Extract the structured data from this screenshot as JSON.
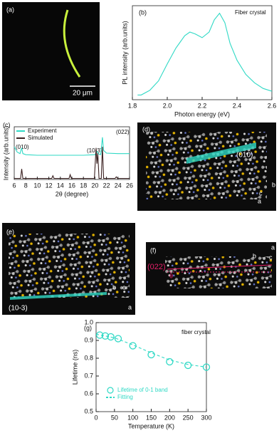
{
  "chart_data": [
    {
      "type": "line",
      "panel_label": "(b)",
      "x_label": "Photon energy (eV)",
      "y_label": "PL intensity (arb.units)",
      "annotations": [
        "Fiber crystal"
      ],
      "xlim": [
        1.8,
        2.6
      ],
      "xticks": [
        1.8,
        {
          "value": 2,
          "label": "2.0"
        },
        2.2,
        2.4,
        2.6
      ],
      "ylim": [
        0,
        1
      ],
      "series": [
        {
          "color": "#2fd9c5",
          "style": "line",
          "x": [
            1.83,
            1.85,
            1.9,
            1.95,
            2.0,
            2.05,
            2.1,
            2.13,
            2.16,
            2.2,
            2.24,
            2.27,
            2.3,
            2.33,
            2.36,
            2.4,
            2.45,
            2.5,
            2.55,
            2.6
          ],
          "values": [
            0.05,
            0.05,
            0.1,
            0.2,
            0.38,
            0.55,
            0.68,
            0.72,
            0.7,
            0.66,
            0.72,
            0.85,
            0.92,
            0.82,
            0.6,
            0.42,
            0.27,
            0.18,
            0.12,
            0.09
          ]
        }
      ]
    },
    {
      "type": "line",
      "panel_label": "(c)",
      "x_label": "2θ (degree)",
      "y_label": "Intensity (arb.units)",
      "annotations": [
        "(010)",
        "(10-3)",
        "(022)"
      ],
      "legend": "upper left",
      "xlim": [
        6,
        26
      ],
      "xticks": [
        6,
        8,
        10,
        12,
        14,
        16,
        18,
        20,
        22,
        24,
        26
      ],
      "ylim": [
        0,
        1
      ],
      "series": [
        {
          "name": "Experiment",
          "color": "#2fd9c5",
          "style": "line",
          "x": [
            6,
            6.5,
            7,
            7.3,
            7.5,
            8,
            10,
            12,
            14,
            16,
            18,
            20,
            20.4,
            20.7,
            21,
            21.3,
            21.5,
            22,
            24,
            26
          ],
          "values": [
            0.62,
            0.52,
            0.49,
            0.6,
            0.49,
            0.47,
            0.46,
            0.46,
            0.46,
            0.46,
            0.46,
            0.47,
            0.53,
            0.48,
            0.47,
            0.8,
            0.55,
            0.5,
            0.49,
            0.49
          ]
        },
        {
          "name": "Simulated",
          "color": "#3a2020",
          "style": "line",
          "x": [
            6,
            7.1,
            7.3,
            7.5,
            12.5,
            12.7,
            12.9,
            15.5,
            15.7,
            15.9,
            19.9,
            20.2,
            20.35,
            20.5,
            20.7,
            21.1,
            21.3,
            21.5,
            23.5,
            23.7,
            23.9,
            26
          ],
          "values": [
            0.02,
            0.02,
            0.2,
            0.02,
            0.02,
            0.07,
            0.02,
            0.02,
            0.09,
            0.02,
            0.02,
            0.6,
            0.3,
            0.5,
            0.02,
            0.02,
            0.62,
            0.02,
            0.02,
            0.05,
            0.02,
            0.02
          ]
        }
      ]
    },
    {
      "type": "scatter",
      "panel_label": "(g)",
      "x_label": "Temperature (K)",
      "y_label": "Lifetime (ns)",
      "annotations": [
        "fiber crystal"
      ],
      "legend": "lower left",
      "xlim": [
        0,
        300
      ],
      "xticks": [
        0,
        50,
        100,
        150,
        200,
        250,
        300
      ],
      "ylim": [
        0.5,
        1
      ],
      "yticks": [
        0.5,
        0.6,
        0.7,
        0.8,
        0.9,
        {
          "value": 1,
          "label": "1.0"
        }
      ],
      "series": [
        {
          "name": "Lifetime of 0-1 band",
          "color": "#2fd9c5",
          "style": "markers",
          "x": [
            10,
            25,
            40,
            60,
            100,
            150,
            200,
            250,
            300
          ],
          "values": [
            0.93,
            0.925,
            0.92,
            0.91,
            0.87,
            0.82,
            0.78,
            0.76,
            0.75
          ]
        },
        {
          "name": "Fitting",
          "color": "#2fd9c5",
          "style": "dashed",
          "x": [
            0,
            50,
            100,
            150,
            200,
            250,
            300
          ],
          "values": [
            0.935,
            0.915,
            0.875,
            0.83,
            0.79,
            0.765,
            0.75
          ]
        }
      ]
    }
  ],
  "panels": {
    "a": {
      "label": "(a)",
      "scale_bar": "20 μm"
    },
    "d": {
      "label": "(d)",
      "plane": "(010)",
      "axes": [
        "c",
        "a",
        "b"
      ]
    },
    "e": {
      "label": "(e)",
      "plane": "(10-3)",
      "axes": [
        "b",
        "c",
        "a"
      ]
    },
    "f": {
      "label": "(f)",
      "plane": "(022)",
      "angle": "θ",
      "axes": [
        "a",
        "b",
        "c"
      ]
    }
  }
}
